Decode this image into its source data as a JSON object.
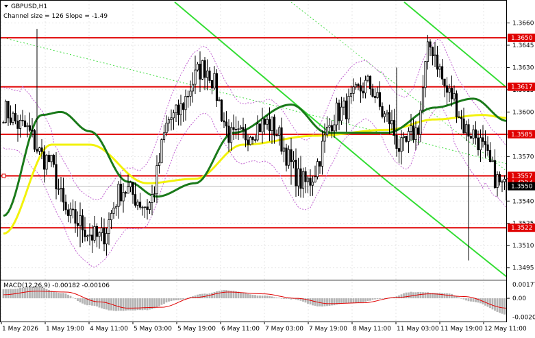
{
  "window": {
    "symbol_label": "GBPUSD,H1",
    "channel_info": "Channel size = 126  Slope = -1.49"
  },
  "chart_data": [
    {
      "type": "candlestick",
      "title": "GBPUSD,H1",
      "subtitle": "Channel size = 126  Slope = -1.49",
      "ylim": [
        1.3487,
        1.3675
      ],
      "y_ticks": [
        "1.3660",
        "1.3645",
        "1.3630",
        "1.3615",
        "1.3600",
        "1.3585",
        "1.3570",
        "1.3555",
        "1.3540",
        "1.3525",
        "1.3510",
        "1.3495"
      ],
      "x_ticks": [
        "1 May 2026",
        "1 May 19:00",
        "4 May 11:00",
        "5 May 03:00",
        "5 May 19:00",
        "6 May 11:00",
        "7 May 03:00",
        "7 May 19:00",
        "8 May 11:00",
        "11 May 03:00",
        "11 May 19:00",
        "12 May 11:00"
      ],
      "grid": true,
      "current_price": "1.3550",
      "hidden_price_tag": "1.3553",
      "levels": [
        {
          "label": "1.3650",
          "value": 1.365,
          "color": "#e00000"
        },
        {
          "label": "1.3617",
          "value": 1.3617,
          "color": "#e00000"
        },
        {
          "label": "1.3585",
          "value": 1.3585,
          "color": "#e00000"
        },
        {
          "label": "1.3557",
          "value": 1.3557,
          "color": "#e00000"
        },
        {
          "label": "1.3522",
          "value": 1.3522,
          "color": "#e00000"
        }
      ],
      "anchor_bars": [
        0,
        8,
        18,
        28,
        40,
        50,
        60,
        70,
        84,
        96,
        110,
        126,
        140,
        152,
        160,
        166,
        172,
        178,
        186,
        194,
        210
      ],
      "anchor_prices": [
        1.3601,
        1.359,
        1.3568,
        1.3528,
        1.3515,
        1.3548,
        1.3537,
        1.3596,
        1.363,
        1.3582,
        1.3592,
        1.3552,
        1.36,
        1.3618,
        1.3596,
        1.3575,
        1.3587,
        1.3644,
        1.3612,
        1.3587,
        1.3548
      ],
      "low_spikes": [
        [
          32,
          1.3509
        ],
        [
          56,
          1.3534
        ],
        [
          120,
          1.3551
        ],
        [
          194,
          1.35
        ]
      ],
      "high_spikes": [
        [
          14,
          1.3656
        ],
        [
          80,
          1.3638
        ],
        [
          164,
          1.363
        ],
        [
          178,
          1.3649
        ]
      ],
      "moving_averages": [
        {
          "color": "#f2f20a",
          "period": "slow",
          "values_by_bar": [
            [
              0,
              1.3518
            ],
            [
              20,
              1.3578
            ],
            [
              36,
              1.3578
            ],
            [
              60,
              1.3552
            ],
            [
              80,
              1.3555
            ],
            [
              100,
              1.3578
            ],
            [
              130,
              1.3584
            ],
            [
              160,
              1.3588
            ],
            [
              180,
              1.3595
            ],
            [
              200,
              1.3598
            ],
            [
              210,
              1.3596
            ]
          ]
        },
        {
          "color": "#1a7a1a",
          "period": "fast",
          "values_by_bar": [
            [
              0,
              1.353
            ],
            [
              16,
              1.3598
            ],
            [
              24,
              1.36
            ],
            [
              36,
              1.3587
            ],
            [
              52,
              1.3553
            ],
            [
              64,
              1.3543
            ],
            [
              80,
              1.3552
            ],
            [
              96,
              1.3586
            ],
            [
              120,
              1.3605
            ],
            [
              135,
              1.3586
            ],
            [
              160,
              1.3586
            ],
            [
              180,
              1.3603
            ],
            [
              196,
              1.3609
            ],
            [
              210,
              1.3594
            ]
          ]
        }
      ],
      "channel": {
        "upper": [
          [
            0,
            1.3688
          ],
          [
            210,
            1.362
          ]
        ],
        "lower": [
          [
            0,
            1.3604
          ],
          [
            210,
            1.3484
          ]
        ],
        "middle_dotted": [
          [
            0,
            1.365
          ],
          [
            210,
            1.3565
          ]
        ]
      }
    },
    {
      "type": "histogram",
      "title": "MACD(12,26,9) -0.00182 -0.00106",
      "ylim": [
        -0.0026,
        0.002
      ],
      "y_ticks": [
        "0.00",
        "0.00177",
        "-0.00209"
      ],
      "signal_color": "#e00000",
      "histogram_color": "#b4b4b4",
      "values_by_bar": [
        [
          0,
          0.001
        ],
        [
          14,
          0.0013
        ],
        [
          24,
          0.0006
        ],
        [
          36,
          -0.0008
        ],
        [
          46,
          -0.0014
        ],
        [
          60,
          -0.0013
        ],
        [
          72,
          -0.0002
        ],
        [
          84,
          0.0005
        ],
        [
          92,
          0.0009
        ],
        [
          108,
          0.0003
        ],
        [
          120,
          -0.0001
        ],
        [
          132,
          -0.0009
        ],
        [
          146,
          -0.0005
        ],
        [
          160,
          0.0
        ],
        [
          170,
          0.0007
        ],
        [
          184,
          0.0006
        ],
        [
          196,
          -0.0004
        ],
        [
          210,
          -0.0018
        ]
      ],
      "signal_by_bar": [
        [
          0,
          0.0004
        ],
        [
          14,
          0.0008
        ],
        [
          26,
          0.0007
        ],
        [
          40,
          -0.0004
        ],
        [
          52,
          -0.0011
        ],
        [
          66,
          -0.001
        ],
        [
          80,
          0.0001
        ],
        [
          94,
          0.0007
        ],
        [
          108,
          0.0005
        ],
        [
          122,
          0.0
        ],
        [
          136,
          -0.0006
        ],
        [
          150,
          -0.0005
        ],
        [
          164,
          0.0001
        ],
        [
          178,
          0.0005
        ],
        [
          192,
          0.0002
        ],
        [
          210,
          -0.0011
        ]
      ]
    }
  ]
}
